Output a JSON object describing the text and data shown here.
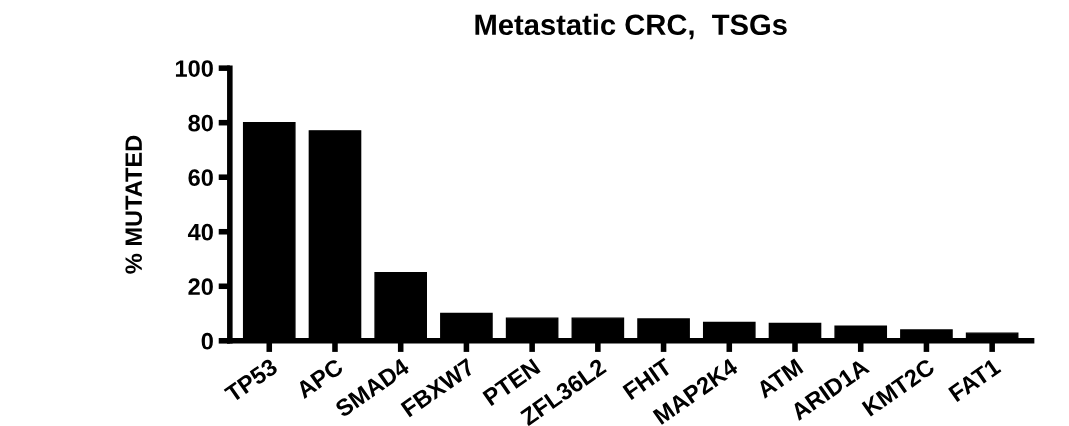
{
  "chart_data": {
    "type": "bar",
    "title": "Metastatic CRC,  TSGs",
    "ylabel": "% MUTATED",
    "categories": [
      "TP53",
      "APC",
      "SMAD4",
      "FBXW7",
      "PTEN",
      "ZFL36L2",
      "FHIT",
      "MAP2K4",
      "ATM",
      "ARID1A",
      "KMT2C",
      "FAT1"
    ],
    "values": [
      80,
      77,
      25,
      10,
      8.3,
      8.3,
      8,
      6.7,
      6.4,
      5.4,
      4,
      2.8
    ],
    "color": "#000000",
    "ylim": [
      0,
      100
    ],
    "yticks": [
      0,
      20,
      40,
      60,
      80,
      100
    ],
    "grid": false,
    "legend": false
  }
}
